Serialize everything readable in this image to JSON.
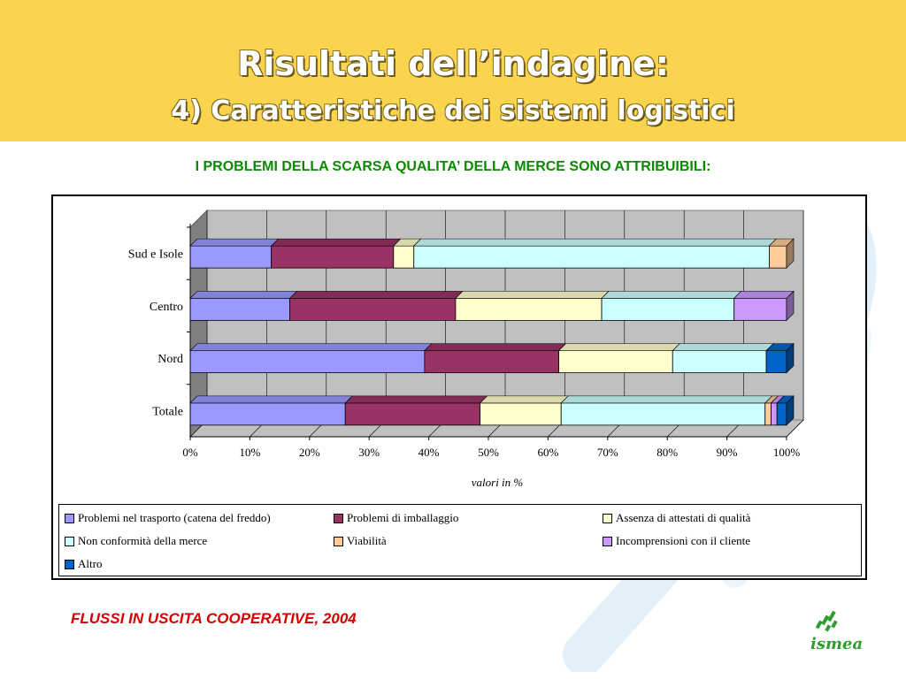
{
  "header": {
    "title": "Risultati dell’indagine:",
    "subtitle": "4) Caratteristiche dei sistemi logistici"
  },
  "chart_heading": "I PROBLEMI DELLA SCARSA QUALITA’ DELLA MERCE SONO ATTRIBUIBILI:",
  "footer": "FLUSSI IN USCITA COOPERATIVE, 2004",
  "logo": {
    "text": "ismea"
  },
  "colors": {
    "header_bg": "#fbd44f",
    "heading": "#0a8a00",
    "footer": "#d60000"
  },
  "chart_data": {
    "type": "bar",
    "orientation": "horizontal",
    "stacked": "100%",
    "categories": [
      "Sud e Isole",
      "Centro",
      "Nord",
      "Totale"
    ],
    "xlabel": "valori in %",
    "ylabel": "",
    "xlim": [
      0,
      100
    ],
    "x_ticks": [
      "0%",
      "10%",
      "20%",
      "30%",
      "40%",
      "50%",
      "60%",
      "70%",
      "80%",
      "90%",
      "100%"
    ],
    "grid": true,
    "legend_position": "bottom",
    "series": [
      {
        "name": "Problemi nel trasporto (catena del freddo)",
        "color": "#9999ff",
        "values": [
          13.6,
          16.7,
          39.3,
          26.0
        ]
      },
      {
        "name": "Problemi di imballaggio",
        "color": "#993366",
        "values": [
          20.5,
          27.8,
          22.5,
          22.6
        ]
      },
      {
        "name": "Assenza di attestati di qualità",
        "color": "#ffffcc",
        "values": [
          3.4,
          24.5,
          19.1,
          13.6
        ]
      },
      {
        "name": "Non conformità della merce",
        "color": "#ccffff",
        "values": [
          59.6,
          22.2,
          15.7,
          34.2
        ]
      },
      {
        "name": "Viabilità",
        "color": "#ffcc99",
        "values": [
          2.9,
          0,
          0,
          1.0
        ]
      },
      {
        "name": "Incomprensioni con il cliente",
        "color": "#cc99ff",
        "values": [
          0,
          8.8,
          0,
          1.0
        ]
      },
      {
        "name": "Altro",
        "color": "#0066cc",
        "values": [
          0,
          0,
          3.4,
          1.6
        ]
      }
    ]
  }
}
